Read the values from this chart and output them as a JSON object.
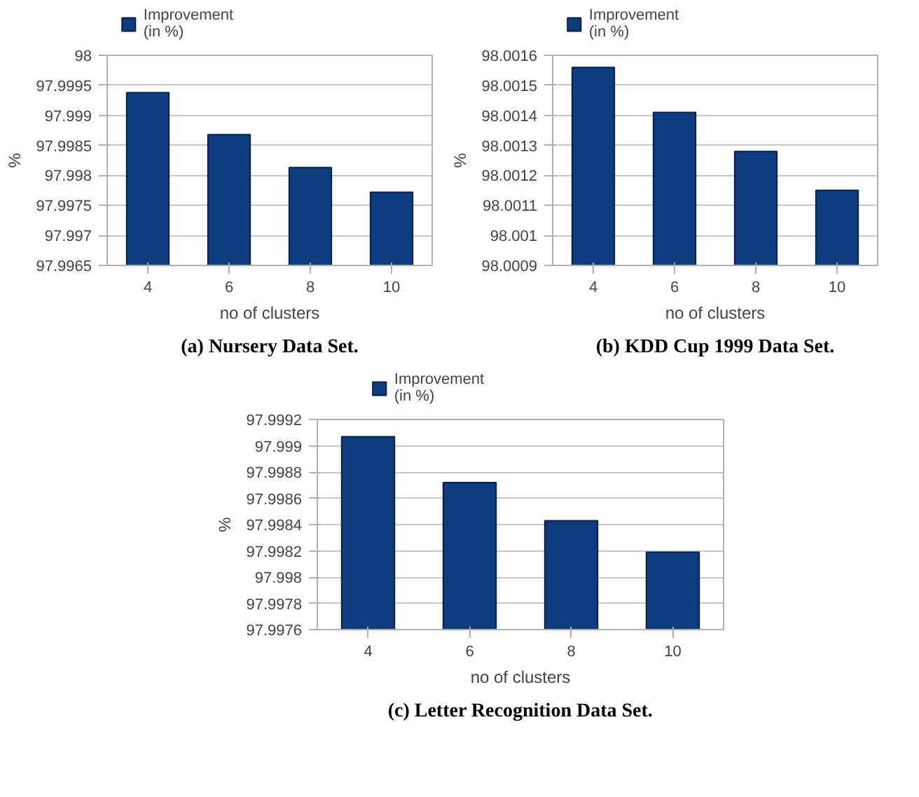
{
  "chart_data": [
    {
      "type": "bar",
      "title": "(a) Nursery Data Set.",
      "xlabel": "no of clusters",
      "ylabel": "%",
      "categories": [
        "4",
        "6",
        "8",
        "10"
      ],
      "series": [
        {
          "name": "Improvement\n(in %)",
          "color": "#0d3d80",
          "values": [
            97.99938,
            97.99868,
            97.99813,
            97.99772
          ]
        }
      ],
      "ylim": [
        97.9965,
        98
      ],
      "yticks": [
        97.9965,
        97.997,
        97.9975,
        97.998,
        97.9985,
        97.999,
        97.9995,
        98
      ],
      "grid": "y",
      "legend": "top"
    },
    {
      "type": "bar",
      "title": "(b) KDD Cup 1999 Data Set.",
      "xlabel": "no of clusters",
      "ylabel": "%",
      "categories": [
        "4",
        "6",
        "8",
        "10"
      ],
      "series": [
        {
          "name": "Improvement\n(in %)",
          "color": "#0d3d80",
          "values": [
            98.00156,
            98.00141,
            98.00128,
            98.00115
          ]
        }
      ],
      "ylim": [
        98.0009,
        98.0016
      ],
      "yticks": [
        98.0009,
        98.001,
        98.0011,
        98.0012,
        98.0013,
        98.0014,
        98.0015,
        98.0016
      ],
      "grid": "y",
      "legend": "top"
    },
    {
      "type": "bar",
      "title": "(c) Letter Recognition Data Set.",
      "xlabel": "no of clusters",
      "ylabel": "%",
      "categories": [
        "4",
        "6",
        "8",
        "10"
      ],
      "series": [
        {
          "name": "Improvement\n(in %)",
          "color": "#0d3d80",
          "values": [
            97.99907,
            97.99872,
            97.99843,
            97.99819
          ]
        }
      ],
      "ylim": [
        97.9976,
        97.9992
      ],
      "yticks": [
        97.9976,
        97.9978,
        97.998,
        97.9982,
        97.9984,
        97.9986,
        97.9988,
        97.999,
        97.9992
      ],
      "grid": "y",
      "legend": "top"
    }
  ]
}
